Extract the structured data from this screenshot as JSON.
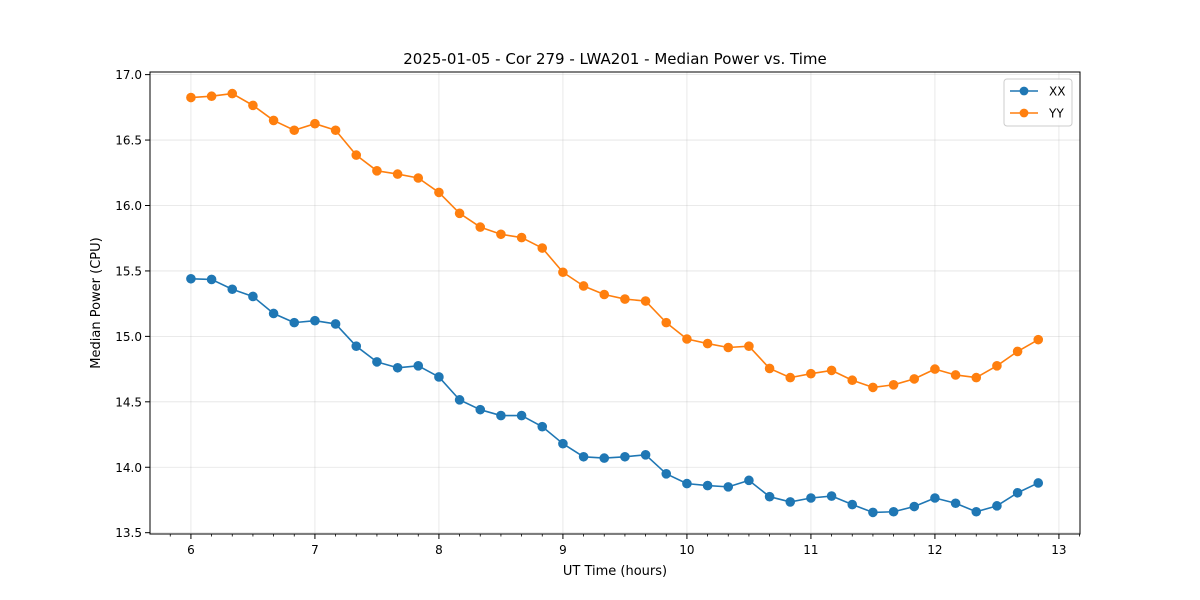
{
  "chart_data": {
    "type": "line",
    "title": "2025-01-05 - Cor 279 - LWA201 - Median Power vs. Time",
    "xlabel": "UT Time (hours)",
    "ylabel": "Median Power (CPU)",
    "xlim": [
      5.67,
      13.17
    ],
    "ylim": [
      13.49,
      17.02
    ],
    "xticks": [
      6,
      7,
      8,
      9,
      10,
      11,
      12,
      13
    ],
    "yticks": [
      13.5,
      14.0,
      14.5,
      15.0,
      15.5,
      16.0,
      16.5,
      17.0
    ],
    "xtick_labels": [
      "6",
      "7",
      "8",
      "9",
      "10",
      "11",
      "12",
      "13"
    ],
    "ytick_labels": [
      "13.5",
      "14.0",
      "14.5",
      "15.0",
      "15.5",
      "16.0",
      "16.5",
      "17.0"
    ],
    "grid": true,
    "legend_position": "top-right",
    "x": [
      6.0,
      6.1667,
      6.3333,
      6.5,
      6.6667,
      6.8333,
      7.0,
      7.1667,
      7.3333,
      7.5,
      7.6667,
      7.8333,
      8.0,
      8.1667,
      8.3333,
      8.5,
      8.6667,
      8.8333,
      9.0,
      9.1667,
      9.3333,
      9.5,
      9.6667,
      9.8333,
      10.0,
      10.1667,
      10.3333,
      10.5,
      10.6667,
      10.8333,
      11.0,
      11.1667,
      11.3333,
      11.5,
      11.6667,
      11.8333,
      12.0,
      12.1667,
      12.3333,
      12.5,
      12.6667,
      12.8333
    ],
    "series": [
      {
        "name": "XX",
        "color": "#1f77b4",
        "values": [
          15.44,
          15.435,
          15.36,
          15.305,
          15.175,
          15.105,
          15.12,
          15.095,
          14.925,
          14.805,
          14.76,
          14.775,
          14.69,
          14.515,
          14.44,
          14.395,
          14.395,
          14.31,
          14.18,
          14.08,
          14.07,
          14.08,
          14.095,
          13.95,
          13.875,
          13.86,
          13.85,
          13.9,
          13.775,
          13.735,
          13.765,
          13.78,
          13.715,
          13.655,
          13.66,
          13.7,
          13.765,
          13.725,
          13.66,
          13.705,
          13.805,
          13.88
        ]
      },
      {
        "name": "YY",
        "color": "#ff7f0e",
        "values": [
          16.825,
          16.835,
          16.855,
          16.765,
          16.65,
          16.575,
          16.625,
          16.575,
          16.385,
          16.265,
          16.24,
          16.21,
          16.1,
          15.94,
          15.835,
          15.78,
          15.755,
          15.675,
          15.49,
          15.385,
          15.32,
          15.285,
          15.27,
          15.105,
          14.98,
          14.945,
          14.915,
          14.925,
          14.755,
          14.685,
          14.715,
          14.74,
          14.665,
          14.61,
          14.63,
          14.675,
          14.75,
          14.705,
          14.685,
          14.775,
          14.885,
          14.975
        ]
      }
    ]
  }
}
